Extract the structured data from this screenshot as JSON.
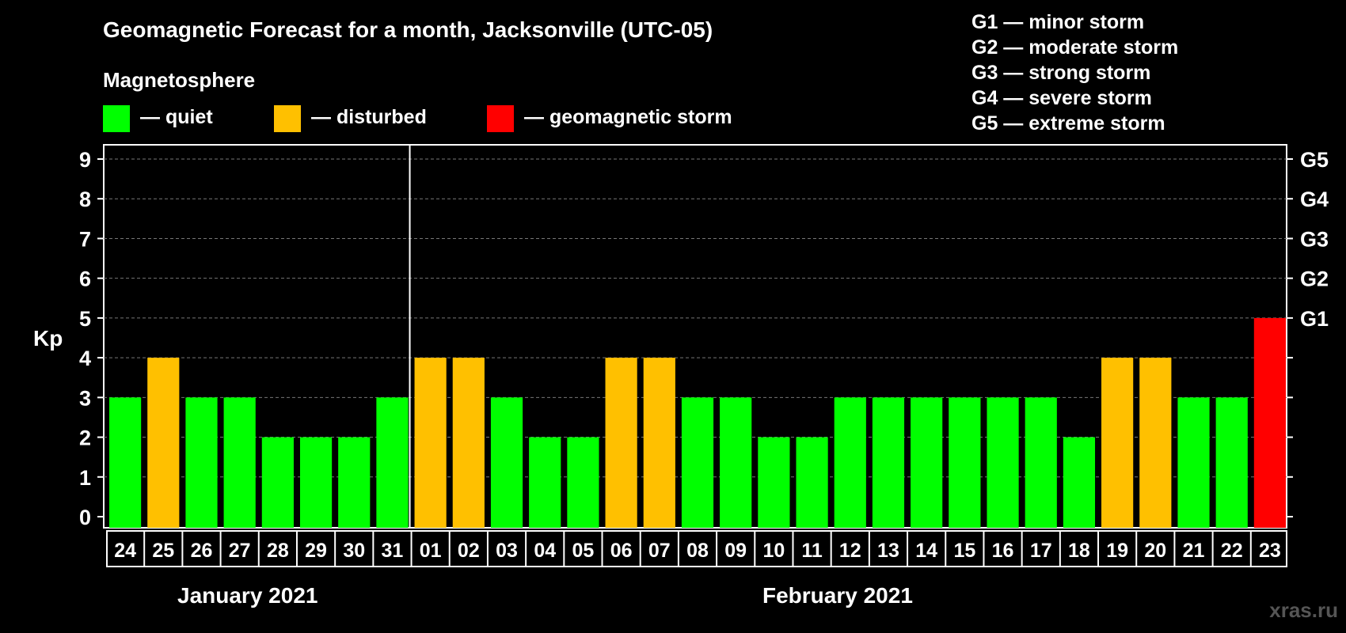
{
  "title": "Geomagnetic Forecast for a month, Jacksonville (UTC-05)",
  "legend": {
    "title": "Magnetosphere",
    "items": [
      {
        "label": "— quiet",
        "color": "#00ff00"
      },
      {
        "label": "— disturbed",
        "color": "#ffc000"
      },
      {
        "label": "— geomagnetic storm",
        "color": "#ff0000"
      }
    ]
  },
  "g_scale": [
    "G1 — minor storm",
    "G2 — moderate storm",
    "G3 — strong storm",
    "G4 — severe storm",
    "G5 — extreme storm"
  ],
  "watermark": "xras.ru",
  "chart_data": {
    "type": "bar",
    "ylabel": "Kp",
    "ylim": [
      0,
      9
    ],
    "yticks": [
      "0",
      "1",
      "2",
      "3",
      "4",
      "5",
      "6",
      "7",
      "8",
      "9"
    ],
    "right_axis_labels": [
      {
        "kp": 5,
        "label": "G1"
      },
      {
        "kp": 6,
        "label": "G2"
      },
      {
        "kp": 7,
        "label": "G3"
      },
      {
        "kp": 8,
        "label": "G4"
      },
      {
        "kp": 9,
        "label": "G5"
      }
    ],
    "grid": true,
    "months": [
      {
        "label": "January 2021",
        "days": [
          "24",
          "25",
          "26",
          "27",
          "28",
          "29",
          "30",
          "31"
        ]
      },
      {
        "label": "February 2021",
        "days": [
          "01",
          "02",
          "03",
          "04",
          "05",
          "06",
          "07",
          "08",
          "09",
          "10",
          "11",
          "12",
          "13",
          "14",
          "15",
          "16",
          "17",
          "18",
          "19",
          "20",
          "21",
          "22",
          "23"
        ]
      }
    ],
    "categories": [
      "24",
      "25",
      "26",
      "27",
      "28",
      "29",
      "30",
      "31",
      "01",
      "02",
      "03",
      "04",
      "05",
      "06",
      "07",
      "08",
      "09",
      "10",
      "11",
      "12",
      "13",
      "14",
      "15",
      "16",
      "17",
      "18",
      "19",
      "20",
      "21",
      "22",
      "23"
    ],
    "values": [
      3,
      4,
      3,
      3,
      2,
      2,
      2,
      3,
      4,
      4,
      3,
      2,
      2,
      4,
      4,
      3,
      3,
      2,
      2,
      3,
      3,
      3,
      3,
      3,
      3,
      2,
      4,
      4,
      3,
      3,
      5
    ],
    "colors": {
      "quiet": "#00ff00",
      "disturbed": "#ffc000",
      "storm": "#ff0000"
    }
  }
}
